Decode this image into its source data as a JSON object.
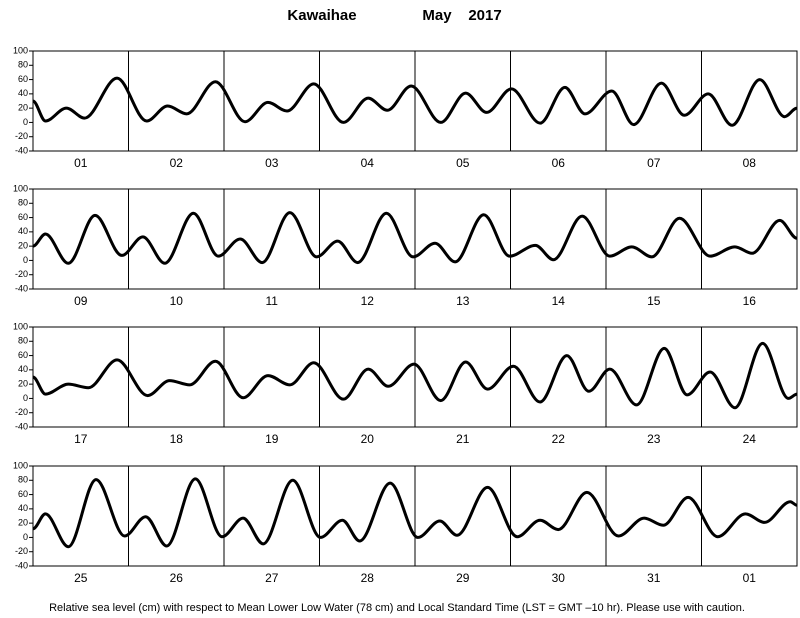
{
  "header": {
    "station": "Kawaihae",
    "month": "May",
    "year": "2017"
  },
  "footnote": "Relative sea level (cm) with respect to Mean Lower Low Water (78 cm) and Local Standard Time (LST = GMT –10 hr). Please use with caution.",
  "chart_data": [
    {
      "type": "line",
      "color": "#000000",
      "xlim": [
        0,
        8
      ],
      "ylim": [
        -40,
        100
      ],
      "yticks": [
        -40,
        -20,
        0,
        20,
        40,
        60,
        80,
        100
      ],
      "xticks": [
        {
          "value": 0.5,
          "label": "01"
        },
        {
          "value": 1.5,
          "label": "02"
        },
        {
          "value": 2.5,
          "label": "03"
        },
        {
          "value": 3.5,
          "label": "04"
        },
        {
          "value": 4.5,
          "label": "05"
        },
        {
          "value": 5.5,
          "label": "06"
        },
        {
          "value": 6.5,
          "label": "07"
        },
        {
          "value": 7.5,
          "label": "08"
        }
      ],
      "x": [
        0,
        0.13,
        0.35,
        0.54,
        0.88,
        1.19,
        1.41,
        1.61,
        1.91,
        2.22,
        2.46,
        2.66,
        2.94,
        3.25,
        3.51,
        3.71,
        3.96,
        4.27,
        4.53,
        4.75,
        5.01,
        5.31,
        5.57,
        5.78,
        6.06,
        6.29,
        6.58,
        6.82,
        7.07,
        7.32,
        7.61,
        7.87,
        8
      ],
      "values": [
        30,
        2,
        20,
        6,
        62,
        2,
        23,
        12,
        57,
        1,
        28,
        16,
        54,
        0,
        34,
        17,
        51,
        0,
        41,
        14,
        47,
        -1,
        49,
        12,
        44,
        -3,
        55,
        10,
        40,
        -4,
        60,
        8,
        20
      ]
    },
    {
      "type": "line",
      "color": "#000000",
      "xlim": [
        0,
        8
      ],
      "ylim": [
        -40,
        100
      ],
      "yticks": [
        -40,
        -20,
        0,
        20,
        40,
        60,
        80,
        100
      ],
      "xticks": [
        {
          "value": 0.5,
          "label": "09"
        },
        {
          "value": 1.5,
          "label": "10"
        },
        {
          "value": 2.5,
          "label": "11"
        },
        {
          "value": 3.5,
          "label": "12"
        },
        {
          "value": 4.5,
          "label": "13"
        },
        {
          "value": 5.5,
          "label": "14"
        },
        {
          "value": 6.5,
          "label": "15"
        },
        {
          "value": 7.5,
          "label": "16"
        }
      ],
      "x": [
        0,
        0.13,
        0.37,
        0.65,
        0.93,
        1.15,
        1.38,
        1.68,
        1.94,
        2.17,
        2.4,
        2.69,
        2.97,
        3.19,
        3.4,
        3.7,
        3.98,
        4.21,
        4.42,
        4.72,
        4.99,
        5.26,
        5.45,
        5.75,
        6.04,
        6.27,
        6.48,
        6.77,
        7.09,
        7.35,
        7.53,
        7.82,
        8
      ],
      "values": [
        20,
        37,
        -4,
        63,
        7,
        33,
        -4,
        66,
        6,
        30,
        -3,
        67,
        5,
        27,
        -3,
        66,
        5,
        24,
        -2,
        64,
        6,
        21,
        1,
        62,
        6,
        19,
        5,
        59,
        6,
        19,
        10,
        56,
        31
      ]
    },
    {
      "type": "line",
      "color": "#000000",
      "xlim": [
        0,
        8
      ],
      "ylim": [
        -40,
        100
      ],
      "yticks": [
        -40,
        -20,
        0,
        20,
        40,
        60,
        80,
        100
      ],
      "xticks": [
        {
          "value": 0.5,
          "label": "17"
        },
        {
          "value": 1.5,
          "label": "18"
        },
        {
          "value": 2.5,
          "label": "19"
        },
        {
          "value": 3.5,
          "label": "20"
        },
        {
          "value": 4.5,
          "label": "21"
        },
        {
          "value": 5.5,
          "label": "22"
        },
        {
          "value": 6.5,
          "label": "23"
        },
        {
          "value": 7.5,
          "label": "24"
        }
      ],
      "x": [
        0,
        0.13,
        0.37,
        0.58,
        0.88,
        1.2,
        1.43,
        1.64,
        1.91,
        2.2,
        2.46,
        2.69,
        2.94,
        3.25,
        3.51,
        3.72,
        3.99,
        4.27,
        4.53,
        4.76,
        5.03,
        5.31,
        5.59,
        5.82,
        6.04,
        6.32,
        6.61,
        6.85,
        7.09,
        7.35,
        7.64,
        7.91,
        8
      ],
      "values": [
        30,
        6,
        20,
        15,
        54,
        4,
        25,
        19,
        52,
        1,
        32,
        19,
        50,
        -1,
        41,
        17,
        48,
        -3,
        51,
        13,
        45,
        -5,
        60,
        10,
        41,
        -9,
        70,
        5,
        37,
        -13,
        77,
        0,
        6
      ]
    },
    {
      "type": "line",
      "color": "#000000",
      "xlim": [
        0,
        8
      ],
      "ylim": [
        -40,
        100
      ],
      "yticks": [
        -40,
        -20,
        0,
        20,
        40,
        60,
        80,
        100
      ],
      "xticks": [
        {
          "value": 0.5,
          "label": "25"
        },
        {
          "value": 1.5,
          "label": "26"
        },
        {
          "value": 2.5,
          "label": "27"
        },
        {
          "value": 3.5,
          "label": "28"
        },
        {
          "value": 4.5,
          "label": "29"
        },
        {
          "value": 5.5,
          "label": "30"
        },
        {
          "value": 6.5,
          "label": "31"
        },
        {
          "value": 7.5,
          "label": "01"
        }
      ],
      "x": [
        0,
        0.13,
        0.37,
        0.66,
        0.96,
        1.18,
        1.4,
        1.7,
        1.98,
        2.2,
        2.41,
        2.72,
        3.01,
        3.24,
        3.42,
        3.74,
        4.03,
        4.26,
        4.44,
        4.76,
        5.07,
        5.31,
        5.5,
        5.8,
        6.13,
        6.4,
        6.6,
        6.86,
        7.17,
        7.46,
        7.66,
        7.93,
        8
      ],
      "values": [
        12,
        33,
        -13,
        81,
        2,
        29,
        -12,
        82,
        1,
        27,
        -9,
        80,
        0,
        24,
        -5,
        76,
        0,
        23,
        3,
        70,
        1,
        24,
        11,
        63,
        2,
        27,
        17,
        56,
        1,
        33,
        21,
        50,
        45
      ]
    }
  ]
}
